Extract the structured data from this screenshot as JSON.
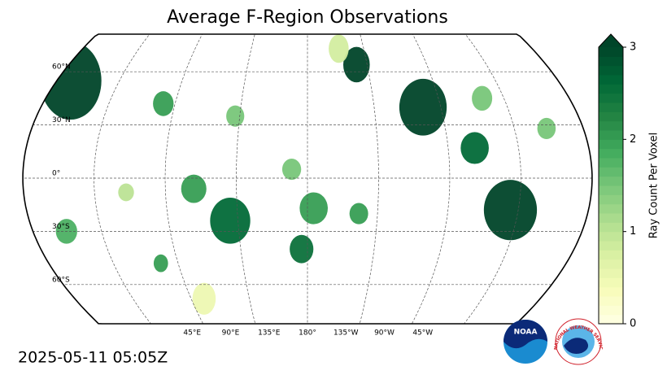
{
  "title": "Average F-Region Observations",
  "timestamp": "2025-05-11 05:05Z",
  "map": {
    "lat_labels": [
      {
        "value": 60,
        "label": "60°N"
      },
      {
        "value": 30,
        "label": "30°N"
      },
      {
        "value": 0,
        "label": "0°"
      },
      {
        "value": -30,
        "label": "30°S"
      },
      {
        "value": -60,
        "label": "60°S"
      }
    ],
    "lon_labels": [
      {
        "value": 45,
        "label": "45°E"
      },
      {
        "value": 90,
        "label": "90°E"
      },
      {
        "value": 135,
        "label": "135°E"
      },
      {
        "value": 180,
        "label": "180°"
      },
      {
        "value": 225,
        "label": "135°W"
      },
      {
        "value": 270,
        "label": "90°W"
      },
      {
        "value": 315,
        "label": "45°W"
      }
    ],
    "regions": [
      {
        "lon": 10,
        "lat": 55,
        "radius": 22,
        "value": 3
      },
      {
        "lon": 217,
        "lat": 64,
        "radius": 10,
        "value": 3
      },
      {
        "lon": 258,
        "lat": 40,
        "radius": 16,
        "value": 3
      },
      {
        "lon": 310,
        "lat": -18,
        "radius": 17,
        "value": 3
      },
      {
        "lon": 130,
        "lat": -24,
        "radius": 13,
        "value": 2.6
      },
      {
        "lon": 170,
        "lat": 5,
        "radius": 6,
        "value": 1.5
      },
      {
        "lon": 184,
        "lat": -17,
        "radius": 9,
        "value": 2
      },
      {
        "lon": 213,
        "lat": -20,
        "radius": 6,
        "value": 2
      },
      {
        "lon": 176,
        "lat": -40,
        "radius": 8,
        "value": 2.5
      },
      {
        "lon": 78,
        "lat": -48,
        "radius": 5,
        "value": 2
      },
      {
        "lon": 22,
        "lat": -30,
        "radius": 7,
        "value": 1.8
      },
      {
        "lon": 82,
        "lat": 42,
        "radius": 7,
        "value": 2
      },
      {
        "lon": 132,
        "lat": 35,
        "radius": 6,
        "value": 1.5
      },
      {
        "lon": 108,
        "lat": -6,
        "radius": 8,
        "value": 2
      },
      {
        "lon": 65,
        "lat": -8,
        "radius": 5,
        "value": 1
      },
      {
        "lon": 287,
        "lat": 17,
        "radius": 9,
        "value": 2.6
      },
      {
        "lon": 336,
        "lat": 28,
        "radius": 6,
        "value": 1.5
      },
      {
        "lon": 300,
        "lat": 45,
        "radius": 7,
        "value": 1.5
      },
      {
        "lon": 205,
        "lat": 73,
        "radius": 8,
        "value": 0.8
      },
      {
        "lon": 100,
        "lat": -68,
        "radius": 9,
        "value": 0.5
      }
    ]
  },
  "colorbar": {
    "label": "Ray Count Per Voxel",
    "lim": [
      0,
      3
    ],
    "ticks": [
      0,
      1,
      2,
      3
    ],
    "colors": [
      "#ffffe5",
      "#f7fcb9",
      "#d9f0a3",
      "#addd8e",
      "#78c679",
      "#41ab5d",
      "#238443",
      "#006837",
      "#004529"
    ]
  },
  "logos": {
    "noaa": "NOAA",
    "nws": "NATIONAL WEATHER SERVICE"
  }
}
